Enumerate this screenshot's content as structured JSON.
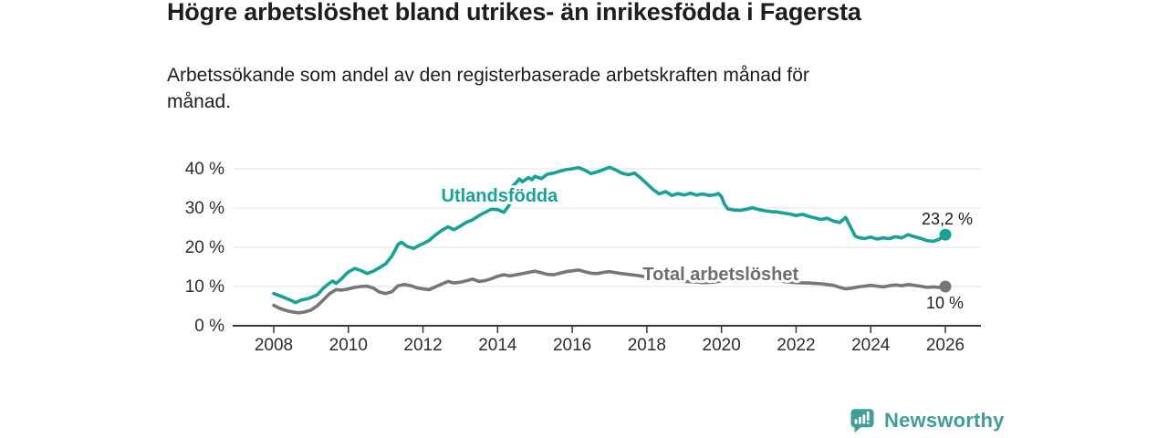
{
  "header": {
    "title": "Högre arbetslöshet bland utrikes- än inrikesfödda i Fagersta",
    "subtitle_line1": "Arbetssökande som andel av den registerbaserade arbetskraften månad för",
    "subtitle_line2": "månad."
  },
  "footer": {
    "brand": "Newsworthy",
    "brand_color": "#3f9f98",
    "logo_icon": "bar-chart-speech-bubble-icon"
  },
  "colors": {
    "accent_teal": "#17a296",
    "line_gray": "#767676",
    "label_gray": "#6e6e6e",
    "text_dark": "#1d1d1b",
    "grid": "#e0e0e0",
    "axis": "#3a3a3a"
  },
  "chart_data": {
    "type": "line",
    "title": "Högre arbetslöshet bland utrikes- än inrikesfödda i Fagersta",
    "subtitle": "Arbetssökande som andel av den registerbaserade arbetskraften månad för månad.",
    "xlabel": "",
    "ylabel": "",
    "x_range": [
      2008,
      2026
    ],
    "grid": "horizontal",
    "legend_position": "inline-labels",
    "y_axis": {
      "range": [
        0,
        42
      ],
      "ticks": [
        {
          "value": 0,
          "label": "0 %"
        },
        {
          "value": 10,
          "label": "10 %"
        },
        {
          "value": 20,
          "label": "20 %"
        },
        {
          "value": 30,
          "label": "30 %"
        },
        {
          "value": 40,
          "label": "40 %"
        }
      ]
    },
    "x_axis": {
      "ticks": [
        {
          "value": 2008,
          "label": "2008"
        },
        {
          "value": 2010,
          "label": "2010"
        },
        {
          "value": 2012,
          "label": "2012"
        },
        {
          "value": 2014,
          "label": "2014"
        },
        {
          "value": 2016,
          "label": "2016"
        },
        {
          "value": 2018,
          "label": "2018"
        },
        {
          "value": 2020,
          "label": "2020"
        },
        {
          "value": 2022,
          "label": "2022"
        },
        {
          "value": 2024,
          "label": "2024"
        },
        {
          "value": 2026,
          "label": "2026"
        }
      ]
    },
    "series": [
      {
        "name": "Utlandsfödda",
        "color": "#17a296",
        "label_color": "#17a296",
        "label_pos": [
          2014.05,
          31.6
        ],
        "end_value": 23.2,
        "value_label": {
          "text": "23,2 %",
          "dx": 30,
          "dy": -11
        },
        "points": [
          [
            2008.0,
            8.2
          ],
          [
            2008.17,
            7.6
          ],
          [
            2008.33,
            7.0
          ],
          [
            2008.5,
            6.3
          ],
          [
            2008.58,
            5.9
          ],
          [
            2008.75,
            6.6
          ],
          [
            2008.92,
            6.9
          ],
          [
            2009.0,
            7.2
          ],
          [
            2009.17,
            7.9
          ],
          [
            2009.33,
            9.6
          ],
          [
            2009.5,
            10.9
          ],
          [
            2009.58,
            11.4
          ],
          [
            2009.67,
            10.8
          ],
          [
            2009.83,
            12.1
          ],
          [
            2009.92,
            13.0
          ],
          [
            2010.0,
            13.7
          ],
          [
            2010.17,
            14.6
          ],
          [
            2010.33,
            14.1
          ],
          [
            2010.5,
            13.3
          ],
          [
            2010.67,
            13.9
          ],
          [
            2010.83,
            14.8
          ],
          [
            2011.0,
            15.8
          ],
          [
            2011.17,
            17.8
          ],
          [
            2011.33,
            20.7
          ],
          [
            2011.42,
            21.3
          ],
          [
            2011.58,
            20.2
          ],
          [
            2011.75,
            19.7
          ],
          [
            2011.92,
            20.6
          ],
          [
            2012.0,
            20.9
          ],
          [
            2012.17,
            21.8
          ],
          [
            2012.33,
            23.1
          ],
          [
            2012.5,
            24.3
          ],
          [
            2012.67,
            25.2
          ],
          [
            2012.83,
            24.5
          ],
          [
            2013.0,
            25.4
          ],
          [
            2013.17,
            26.4
          ],
          [
            2013.33,
            27.0
          ],
          [
            2013.5,
            28.1
          ],
          [
            2013.67,
            28.9
          ],
          [
            2013.83,
            29.7
          ],
          [
            2014.0,
            29.6
          ],
          [
            2014.17,
            28.9
          ],
          [
            2014.33,
            31.0
          ],
          [
            2014.42,
            35.8
          ],
          [
            2014.5,
            36.5
          ],
          [
            2014.58,
            37.4
          ],
          [
            2014.67,
            36.7
          ],
          [
            2014.83,
            37.8
          ],
          [
            2014.92,
            37.2
          ],
          [
            2015.0,
            38.1
          ],
          [
            2015.17,
            37.5
          ],
          [
            2015.33,
            38.6
          ],
          [
            2015.5,
            38.9
          ],
          [
            2015.67,
            39.4
          ],
          [
            2015.83,
            39.8
          ],
          [
            2016.0,
            40.0
          ],
          [
            2016.17,
            40.3
          ],
          [
            2016.33,
            39.7
          ],
          [
            2016.5,
            38.8
          ],
          [
            2016.67,
            39.2
          ],
          [
            2016.83,
            39.8
          ],
          [
            2017.0,
            40.4
          ],
          [
            2017.17,
            39.7
          ],
          [
            2017.33,
            38.9
          ],
          [
            2017.5,
            38.5
          ],
          [
            2017.67,
            38.9
          ],
          [
            2017.83,
            37.7
          ],
          [
            2018.0,
            36.2
          ],
          [
            2018.17,
            34.7
          ],
          [
            2018.33,
            33.6
          ],
          [
            2018.5,
            34.2
          ],
          [
            2018.67,
            33.2
          ],
          [
            2018.83,
            33.7
          ],
          [
            2019.0,
            33.3
          ],
          [
            2019.17,
            33.8
          ],
          [
            2019.33,
            33.3
          ],
          [
            2019.5,
            33.6
          ],
          [
            2019.67,
            33.2
          ],
          [
            2019.83,
            33.4
          ],
          [
            2019.92,
            33.7
          ],
          [
            2020.0,
            32.9
          ],
          [
            2020.08,
            31.0
          ],
          [
            2020.17,
            29.8
          ],
          [
            2020.33,
            29.5
          ],
          [
            2020.5,
            29.4
          ],
          [
            2020.67,
            29.7
          ],
          [
            2020.83,
            30.1
          ],
          [
            2021.0,
            29.6
          ],
          [
            2021.17,
            29.3
          ],
          [
            2021.33,
            29.1
          ],
          [
            2021.5,
            29.0
          ],
          [
            2021.67,
            28.7
          ],
          [
            2021.83,
            28.5
          ],
          [
            2022.0,
            28.1
          ],
          [
            2022.17,
            28.4
          ],
          [
            2022.33,
            27.9
          ],
          [
            2022.5,
            27.5
          ],
          [
            2022.67,
            27.1
          ],
          [
            2022.83,
            27.4
          ],
          [
            2023.0,
            26.7
          ],
          [
            2023.17,
            26.3
          ],
          [
            2023.33,
            27.6
          ],
          [
            2023.5,
            24.4
          ],
          [
            2023.58,
            22.9
          ],
          [
            2023.67,
            22.5
          ],
          [
            2023.83,
            22.2
          ],
          [
            2024.0,
            22.6
          ],
          [
            2024.17,
            22.1
          ],
          [
            2024.33,
            22.4
          ],
          [
            2024.5,
            22.2
          ],
          [
            2024.67,
            22.7
          ],
          [
            2024.83,
            22.4
          ],
          [
            2025.0,
            23.2
          ],
          [
            2025.17,
            22.7
          ],
          [
            2025.33,
            22.3
          ],
          [
            2025.5,
            21.7
          ],
          [
            2025.67,
            21.5
          ],
          [
            2025.83,
            22.0
          ],
          [
            2026.0,
            23.2
          ]
        ]
      },
      {
        "name": "Total arbetslöshet",
        "color": "#767676",
        "label_color": "#6e6e6e",
        "label_pos": [
          2019.98,
          11.6
        ],
        "end_value": 10,
        "value_label": {
          "text": "10 %",
          "dx": 20,
          "dy": 24
        },
        "points": [
          [
            2008.0,
            5.2
          ],
          [
            2008.17,
            4.4
          ],
          [
            2008.33,
            3.9
          ],
          [
            2008.5,
            3.5
          ],
          [
            2008.67,
            3.3
          ],
          [
            2008.83,
            3.5
          ],
          [
            2009.0,
            4.0
          ],
          [
            2009.17,
            5.1
          ],
          [
            2009.33,
            6.6
          ],
          [
            2009.5,
            8.2
          ],
          [
            2009.67,
            9.2
          ],
          [
            2009.83,
            9.1
          ],
          [
            2010.0,
            9.4
          ],
          [
            2010.17,
            9.8
          ],
          [
            2010.33,
            10.0
          ],
          [
            2010.5,
            10.1
          ],
          [
            2010.67,
            9.6
          ],
          [
            2010.83,
            8.6
          ],
          [
            2011.0,
            8.2
          ],
          [
            2011.17,
            8.7
          ],
          [
            2011.33,
            10.2
          ],
          [
            2011.5,
            10.5
          ],
          [
            2011.67,
            10.2
          ],
          [
            2011.83,
            9.7
          ],
          [
            2012.0,
            9.4
          ],
          [
            2012.17,
            9.2
          ],
          [
            2012.33,
            9.9
          ],
          [
            2012.5,
            10.6
          ],
          [
            2012.67,
            11.3
          ],
          [
            2012.83,
            10.9
          ],
          [
            2013.0,
            11.1
          ],
          [
            2013.17,
            11.5
          ],
          [
            2013.33,
            11.9
          ],
          [
            2013.5,
            11.3
          ],
          [
            2013.67,
            11.5
          ],
          [
            2013.83,
            12.0
          ],
          [
            2014.0,
            12.6
          ],
          [
            2014.17,
            13.0
          ],
          [
            2014.33,
            12.7
          ],
          [
            2014.5,
            13.0
          ],
          [
            2014.67,
            13.3
          ],
          [
            2014.83,
            13.6
          ],
          [
            2015.0,
            13.9
          ],
          [
            2015.17,
            13.5
          ],
          [
            2015.33,
            13.1
          ],
          [
            2015.5,
            13.0
          ],
          [
            2015.67,
            13.4
          ],
          [
            2015.83,
            13.8
          ],
          [
            2016.0,
            14.0
          ],
          [
            2016.17,
            14.2
          ],
          [
            2016.33,
            13.8
          ],
          [
            2016.5,
            13.4
          ],
          [
            2016.67,
            13.3
          ],
          [
            2016.83,
            13.6
          ],
          [
            2017.0,
            13.8
          ],
          [
            2017.17,
            13.5
          ],
          [
            2017.33,
            13.3
          ],
          [
            2017.5,
            13.1
          ],
          [
            2017.67,
            12.9
          ],
          [
            2017.83,
            12.7
          ],
          [
            2018.0,
            12.4
          ],
          [
            2018.25,
            12.0
          ],
          [
            2018.5,
            11.7
          ],
          [
            2018.75,
            11.5
          ],
          [
            2019.0,
            11.3
          ],
          [
            2019.25,
            11.2
          ],
          [
            2019.5,
            11.0
          ],
          [
            2019.75,
            11.1
          ],
          [
            2020.0,
            11.4
          ],
          [
            2020.25,
            12.1
          ],
          [
            2020.5,
            12.3
          ],
          [
            2020.75,
            12.1
          ],
          [
            2021.0,
            11.9
          ],
          [
            2021.25,
            11.6
          ],
          [
            2021.5,
            11.4
          ],
          [
            2021.75,
            11.2
          ],
          [
            2022.0,
            11.0
          ],
          [
            2022.17,
            10.9
          ],
          [
            2022.33,
            10.9
          ],
          [
            2022.5,
            10.8
          ],
          [
            2022.67,
            10.7
          ],
          [
            2022.83,
            10.5
          ],
          [
            2023.0,
            10.3
          ],
          [
            2023.17,
            9.8
          ],
          [
            2023.33,
            9.4
          ],
          [
            2023.5,
            9.6
          ],
          [
            2023.67,
            9.9
          ],
          [
            2023.83,
            10.1
          ],
          [
            2024.0,
            10.3
          ],
          [
            2024.17,
            10.1
          ],
          [
            2024.33,
            9.9
          ],
          [
            2024.5,
            10.2
          ],
          [
            2024.67,
            10.4
          ],
          [
            2024.83,
            10.2
          ],
          [
            2025.0,
            10.5
          ],
          [
            2025.17,
            10.3
          ],
          [
            2025.33,
            10.1
          ],
          [
            2025.5,
            9.8
          ],
          [
            2025.67,
            9.9
          ],
          [
            2025.83,
            9.8
          ],
          [
            2026.0,
            10.0
          ]
        ]
      }
    ]
  }
}
